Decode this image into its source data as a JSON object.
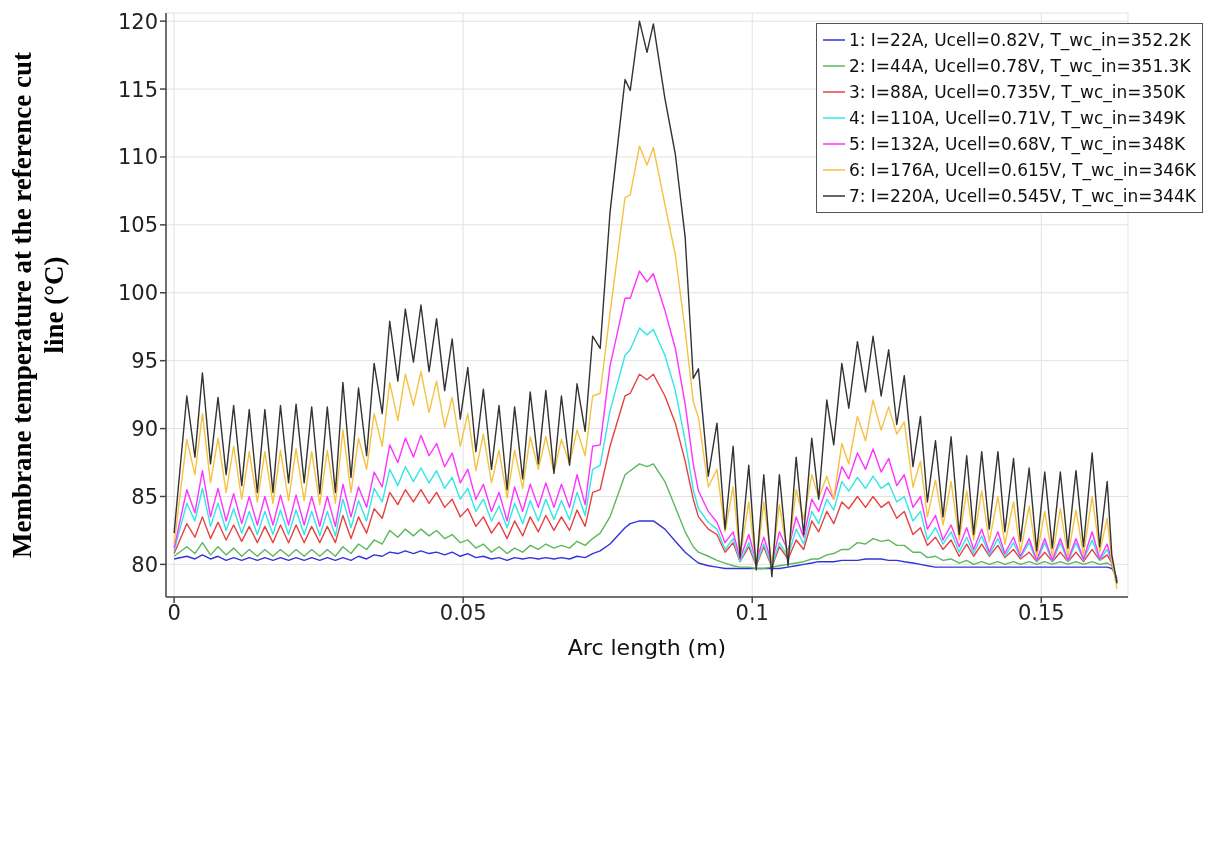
{
  "chart_data": {
    "type": "line",
    "xlabel": "Arc length (m)",
    "ylabel": "Membrane temperature at the reference cut line (°C)",
    "xlim": [
      -0.0014,
      0.165
    ],
    "xticks": [
      0,
      0.05,
      0.1,
      0.15
    ],
    "ylim": [
      77.6,
      120.6
    ],
    "yticks": [
      80,
      85,
      90,
      95,
      100,
      105,
      110,
      115,
      120
    ],
    "grid": true,
    "legend": "top right",
    "line_style": "solid",
    "marker": "none",
    "x": [
      0,
      0.0022,
      0.0036,
      0.0049,
      0.0063,
      0.0076,
      0.009,
      0.0103,
      0.0117,
      0.013,
      0.0144,
      0.0157,
      0.0171,
      0.0184,
      0.0198,
      0.0211,
      0.0225,
      0.0238,
      0.0252,
      0.0265,
      0.0279,
      0.0292,
      0.0306,
      0.0319,
      0.0333,
      0.0346,
      0.036,
      0.0373,
      0.0387,
      0.04,
      0.0414,
      0.0427,
      0.0441,
      0.0454,
      0.0468,
      0.0481,
      0.0495,
      0.0508,
      0.0522,
      0.0535,
      0.0549,
      0.0562,
      0.0576,
      0.0589,
      0.0603,
      0.0616,
      0.063,
      0.0643,
      0.0657,
      0.067,
      0.0684,
      0.0697,
      0.0711,
      0.0724,
      0.0737,
      0.0754,
      0.078,
      0.0789,
      0.0805,
      0.0818,
      0.0829,
      0.0849,
      0.0867,
      0.0884,
      0.0898,
      0.0907,
      0.0924,
      0.0939,
      0.0953,
      0.0967,
      0.0979,
      0.0994,
      0.1007,
      0.102,
      0.1034,
      0.1047,
      0.1062,
      0.1076,
      0.1089,
      0.1103,
      0.1115,
      0.1129,
      0.1141,
      0.1155,
      0.1167,
      0.1182,
      0.1196,
      0.1209,
      0.1223,
      0.1236,
      0.125,
      0.1263,
      0.1278,
      0.1291,
      0.1303,
      0.1317,
      0.133,
      0.1344,
      0.1358,
      0.1371,
      0.1383,
      0.1397,
      0.141,
      0.1425,
      0.1437,
      0.1452,
      0.1464,
      0.1479,
      0.1492,
      0.1506,
      0.1519,
      0.1533,
      0.1546,
      0.156,
      0.1573,
      0.1588,
      0.1601,
      0.1614,
      0.1622,
      0.1631
    ],
    "series": [
      {
        "name": "1: I=22A, Ucell=0.82V, T_wc_in=352.2K",
        "color": "#3333dd",
        "values": [
          80.4,
          80.6,
          80.4,
          80.7,
          80.4,
          80.6,
          80.3,
          80.5,
          80.3,
          80.5,
          80.3,
          80.5,
          80.3,
          80.5,
          80.3,
          80.5,
          80.3,
          80.5,
          80.3,
          80.5,
          80.3,
          80.5,
          80.3,
          80.6,
          80.4,
          80.7,
          80.6,
          80.9,
          80.8,
          81.0,
          80.8,
          81.0,
          80.8,
          80.9,
          80.7,
          80.9,
          80.6,
          80.8,
          80.5,
          80.6,
          80.4,
          80.5,
          80.3,
          80.5,
          80.4,
          80.5,
          80.4,
          80.5,
          80.4,
          80.5,
          80.4,
          80.6,
          80.5,
          80.8,
          81.0,
          81.5,
          82.7,
          83.0,
          83.2,
          83.2,
          83.2,
          82.6,
          81.7,
          80.9,
          80.4,
          80.1,
          79.9,
          79.8,
          79.7,
          79.7,
          79.7,
          79.7,
          79.7,
          79.7,
          79.7,
          79.7,
          79.8,
          79.9,
          80.0,
          80.1,
          80.2,
          80.2,
          80.2,
          80.3,
          80.3,
          80.3,
          80.4,
          80.4,
          80.4,
          80.3,
          80.3,
          80.2,
          80.1,
          80.0,
          79.9,
          79.8,
          79.8,
          79.8,
          79.8,
          79.8,
          79.8,
          79.8,
          79.8,
          79.8,
          79.8,
          79.8,
          79.8,
          79.8,
          79.8,
          79.8,
          79.8,
          79.8,
          79.8,
          79.8,
          79.8,
          79.8,
          79.8,
          79.8,
          79.7,
          79.0
        ]
      },
      {
        "name": "2: I=44A, Ucell=0.78V, T_wc_in=351.3K",
        "color": "#5cb85c",
        "values": [
          80.6,
          81.3,
          80.8,
          81.6,
          80.7,
          81.3,
          80.7,
          81.2,
          80.6,
          81.1,
          80.6,
          81.1,
          80.6,
          81.1,
          80.6,
          81.1,
          80.6,
          81.1,
          80.6,
          81.1,
          80.6,
          81.3,
          80.8,
          81.5,
          81.1,
          81.8,
          81.5,
          82.5,
          82.0,
          82.6,
          82.1,
          82.6,
          82.1,
          82.5,
          81.9,
          82.2,
          81.6,
          81.8,
          81.2,
          81.5,
          80.9,
          81.3,
          80.8,
          81.2,
          80.9,
          81.4,
          81.1,
          81.5,
          81.2,
          81.4,
          81.2,
          81.7,
          81.4,
          81.9,
          82.3,
          83.5,
          86.6,
          86.9,
          87.4,
          87.2,
          87.4,
          86.1,
          84.2,
          82.4,
          81.3,
          80.9,
          80.6,
          80.3,
          80.1,
          79.9,
          79.8,
          79.8,
          79.7,
          79.7,
          79.8,
          79.9,
          80.0,
          80.1,
          80.2,
          80.4,
          80.4,
          80.7,
          80.8,
          81.1,
          81.1,
          81.6,
          81.5,
          81.9,
          81.7,
          81.8,
          81.4,
          81.4,
          80.9,
          80.9,
          80.5,
          80.6,
          80.3,
          80.4,
          80.1,
          80.3,
          80.0,
          80.2,
          80.0,
          80.2,
          80.0,
          80.2,
          80.0,
          80.2,
          80.0,
          80.2,
          80.0,
          80.2,
          80.0,
          80.2,
          80.0,
          80.2,
          80.0,
          80.1,
          79.9,
          78.8
        ]
      },
      {
        "name": "3: I=88A, Ucell=0.735V, T_wc_in=350K",
        "color": "#e84040",
        "values": [
          80.8,
          83.0,
          82.0,
          83.5,
          81.9,
          83.1,
          81.8,
          82.9,
          81.7,
          82.8,
          81.6,
          82.8,
          81.6,
          82.9,
          81.6,
          82.9,
          81.6,
          82.8,
          81.6,
          82.8,
          81.6,
          83.6,
          81.9,
          83.5,
          82.3,
          84.1,
          83.4,
          85.3,
          84.4,
          85.5,
          84.6,
          85.5,
          84.5,
          85.3,
          84.2,
          84.8,
          83.5,
          84.1,
          82.8,
          83.5,
          82.3,
          83.1,
          81.9,
          83.2,
          82.1,
          83.5,
          82.4,
          83.6,
          82.5,
          83.5,
          82.5,
          84.0,
          82.8,
          85.3,
          85.5,
          88.7,
          92.4,
          92.6,
          94.0,
          93.6,
          94.0,
          92.4,
          90.4,
          87.6,
          84.8,
          83.5,
          82.6,
          82.2,
          80.9,
          81.6,
          80.2,
          81.3,
          79.9,
          81.3,
          79.8,
          81.3,
          80.4,
          81.8,
          81.1,
          83.2,
          82.4,
          83.9,
          83.0,
          84.6,
          84.1,
          85.0,
          84.2,
          85.0,
          84.2,
          84.6,
          83.4,
          83.9,
          82.2,
          82.7,
          81.4,
          82.0,
          81.1,
          81.8,
          80.6,
          81.5,
          80.6,
          81.5,
          80.6,
          81.4,
          80.5,
          81.1,
          80.4,
          80.9,
          80.2,
          80.9,
          80.2,
          80.9,
          80.2,
          80.9,
          80.2,
          81.1,
          80.3,
          80.7,
          80.1,
          78.8
        ]
      },
      {
        "name": "4: I=110A, Ucell=0.71V, T_wc_in=349K",
        "color": "#33e6e6",
        "values": [
          81.0,
          84.5,
          83.2,
          85.6,
          82.8,
          84.5,
          82.5,
          84.1,
          82.3,
          83.9,
          82.2,
          83.9,
          82.2,
          84.0,
          82.2,
          84.0,
          82.2,
          83.9,
          82.1,
          83.9,
          82.1,
          84.8,
          82.7,
          84.7,
          83.2,
          85.6,
          84.6,
          87.0,
          85.8,
          87.2,
          86.1,
          87.1,
          86.0,
          86.9,
          85.6,
          86.4,
          84.8,
          85.6,
          83.9,
          84.8,
          83.2,
          84.3,
          82.7,
          84.5,
          83.0,
          84.7,
          83.2,
          84.8,
          83.3,
          84.7,
          83.3,
          85.3,
          83.6,
          87.0,
          87.3,
          91.3,
          95.4,
          95.8,
          97.4,
          96.9,
          97.3,
          95.4,
          92.8,
          89.1,
          85.5,
          84.1,
          83.1,
          82.6,
          81.1,
          81.9,
          80.2,
          81.6,
          80.0,
          81.5,
          79.9,
          81.6,
          80.6,
          82.6,
          81.5,
          83.9,
          83.0,
          84.8,
          84.0,
          86.1,
          85.4,
          86.4,
          85.6,
          86.5,
          85.6,
          86.0,
          84.6,
          85.0,
          83.2,
          83.9,
          81.8,
          82.7,
          81.5,
          82.4,
          80.9,
          82.0,
          80.8,
          82.1,
          80.7,
          81.9,
          80.6,
          81.6,
          80.5,
          81.6,
          80.2,
          81.6,
          80.2,
          81.6,
          80.2,
          81.6,
          80.3,
          81.8,
          80.3,
          81.1,
          80.2,
          78.8
        ]
      },
      {
        "name": "5: I=132A, Ucell=0.68V, T_wc_in=348K",
        "color": "#ff33ff",
        "values": [
          81.2,
          85.5,
          83.8,
          86.9,
          83.5,
          85.6,
          83.2,
          85.2,
          83.0,
          85.0,
          82.9,
          85.0,
          82.9,
          85.1,
          82.9,
          85.1,
          82.9,
          85.0,
          82.8,
          85.0,
          82.8,
          85.9,
          83.5,
          85.7,
          84.2,
          86.8,
          85.7,
          88.8,
          87.5,
          89.3,
          87.9,
          89.5,
          88.0,
          88.9,
          87.2,
          88.2,
          86.0,
          87.0,
          84.8,
          85.9,
          83.9,
          85.3,
          83.2,
          85.7,
          83.9,
          85.9,
          84.2,
          86.0,
          84.2,
          85.9,
          84.2,
          86.6,
          84.4,
          88.7,
          88.8,
          94.6,
          99.6,
          99.6,
          101.6,
          100.8,
          101.4,
          98.7,
          95.9,
          91.8,
          87.4,
          85.4,
          83.9,
          83.1,
          81.6,
          82.4,
          80.4,
          82.2,
          80.2,
          82.0,
          80.1,
          82.4,
          81.0,
          83.5,
          82.0,
          84.8,
          83.9,
          85.7,
          84.8,
          87.2,
          86.3,
          88.2,
          87.0,
          88.5,
          86.8,
          87.8,
          85.8,
          86.6,
          84.2,
          85.0,
          82.6,
          83.6,
          81.8,
          82.9,
          81.3,
          82.7,
          81.1,
          82.6,
          80.9,
          82.4,
          80.8,
          82.0,
          80.6,
          81.9,
          80.3,
          81.9,
          80.3,
          81.9,
          80.3,
          81.9,
          80.4,
          82.4,
          80.4,
          81.5,
          80.2,
          78.7
        ]
      },
      {
        "name": "6: I=176A, Ucell=0.615V, T_wc_in=346K",
        "color": "#f5c242",
        "values": [
          81.5,
          89.2,
          86.6,
          91.1,
          86.0,
          89.3,
          85.3,
          88.7,
          84.8,
          88.3,
          84.6,
          88.3,
          84.5,
          88.4,
          84.7,
          88.5,
          84.7,
          88.3,
          84.4,
          88.4,
          84.5,
          89.9,
          85.3,
          89.3,
          87.0,
          91.1,
          88.7,
          93.4,
          90.6,
          94.0,
          91.7,
          94.2,
          91.2,
          93.5,
          90.1,
          92.3,
          88.7,
          91.1,
          86.9,
          89.6,
          86.0,
          88.4,
          84.9,
          88.4,
          85.6,
          89.4,
          87.0,
          89.4,
          86.8,
          89.2,
          87.4,
          89.9,
          88.0,
          92.4,
          92.6,
          98.5,
          107.0,
          107.2,
          110.8,
          109.4,
          110.7,
          106.5,
          102.8,
          97.2,
          92.0,
          90.8,
          85.7,
          87.0,
          82.4,
          85.7,
          80.5,
          84.6,
          79.8,
          84.6,
          80.0,
          84.4,
          80.5,
          85.5,
          83.3,
          86.6,
          84.9,
          86.5,
          84.8,
          88.9,
          87.4,
          90.9,
          89.1,
          92.1,
          89.9,
          91.6,
          89.6,
          90.5,
          85.7,
          87.6,
          83.5,
          86.2,
          82.9,
          86.1,
          81.8,
          85.4,
          81.8,
          85.4,
          81.7,
          85.0,
          81.5,
          84.6,
          80.9,
          84.3,
          80.6,
          83.9,
          80.6,
          84.1,
          80.6,
          84.0,
          80.7,
          85.0,
          80.9,
          83.4,
          80.2,
          78.2
        ]
      },
      {
        "name": "7: I=220A, Ucell=0.545V, T_wc_in=344K",
        "color": "#333333",
        "values": [
          82.3,
          92.4,
          87.9,
          94.1,
          87.4,
          92.3,
          86.6,
          91.7,
          85.8,
          91.4,
          85.3,
          91.4,
          85.3,
          91.7,
          86.0,
          91.8,
          86.0,
          91.6,
          85.2,
          91.6,
          85.3,
          93.4,
          86.4,
          93.0,
          88.0,
          94.8,
          91.1,
          97.9,
          93.5,
          98.8,
          94.9,
          99.1,
          94.2,
          98.1,
          92.8,
          96.6,
          90.7,
          94.5,
          88.3,
          92.9,
          87.0,
          91.7,
          85.5,
          91.6,
          86.3,
          92.7,
          87.4,
          92.8,
          86.7,
          92.4,
          87.3,
          93.3,
          89.8,
          96.8,
          95.9,
          105.9,
          115.7,
          114.9,
          120.0,
          117.7,
          119.8,
          114.3,
          110.2,
          104.1,
          93.7,
          94.4,
          86.5,
          90.4,
          82.6,
          88.7,
          80.5,
          87.3,
          79.6,
          86.6,
          79.1,
          86.6,
          79.9,
          87.9,
          82.2,
          89.3,
          84.8,
          92.1,
          88.8,
          94.8,
          91.5,
          96.4,
          92.7,
          96.8,
          92.4,
          95.8,
          90.3,
          93.9,
          87.2,
          90.9,
          84.6,
          89.1,
          83.5,
          89.4,
          82.2,
          88.0,
          82.2,
          88.3,
          82.6,
          88.3,
          82.4,
          87.8,
          81.7,
          87.1,
          81.0,
          86.8,
          81.2,
          86.8,
          81.2,
          86.9,
          81.3,
          88.2,
          81.3,
          86.1,
          80.7,
          78.6
        ]
      }
    ]
  }
}
